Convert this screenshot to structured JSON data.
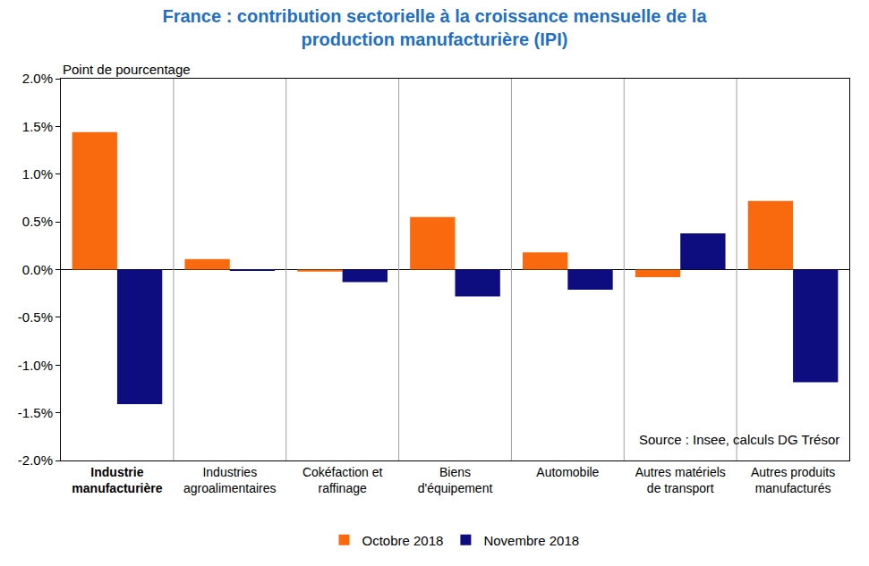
{
  "chart_data": {
    "type": "bar",
    "title": "France : contribution sectorielle à la croissance mensuelle de la production manufacturière (IPI)",
    "y_label": "Point de pourcentage",
    "annotations": [
      "Source : Insee, calculs DG Trésor"
    ],
    "categories": [
      "Industrie manufacturière",
      "Industries agroalimentaires",
      "Cokéfaction et raffinage",
      "Biens d'équipement",
      "Automobile",
      "Autres matériels de transport",
      "Autres produits manufacturés"
    ],
    "series": [
      {
        "name": "Octobre 2018",
        "color": "#f96a0e",
        "values": [
          1.44,
          0.11,
          -0.02,
          0.55,
          0.18,
          -0.08,
          0.72
        ]
      },
      {
        "name": "Novembre 2018",
        "color": "#0d0d80",
        "values": [
          -1.41,
          -0.01,
          -0.13,
          -0.28,
          -0.21,
          0.38,
          -1.18
        ]
      }
    ],
    "ylim": [
      -2.0,
      2.0
    ],
    "yticks": [
      {
        "value": -2.0,
        "label": "-2.0%"
      },
      {
        "value": -1.5,
        "label": "-1.5%"
      },
      {
        "value": -1.0,
        "label": "-1.0%"
      },
      {
        "value": -0.5,
        "label": "-0.5%"
      },
      {
        "value": 0.0,
        "label": "0.0%"
      },
      {
        "value": 0.5,
        "label": "0.5%"
      },
      {
        "value": 1.0,
        "label": "1.0%"
      },
      {
        "value": 1.5,
        "label": "1.5%"
      },
      {
        "value": 2.0,
        "label": "2.0%"
      }
    ],
    "grid": true,
    "legend": "bottom"
  }
}
